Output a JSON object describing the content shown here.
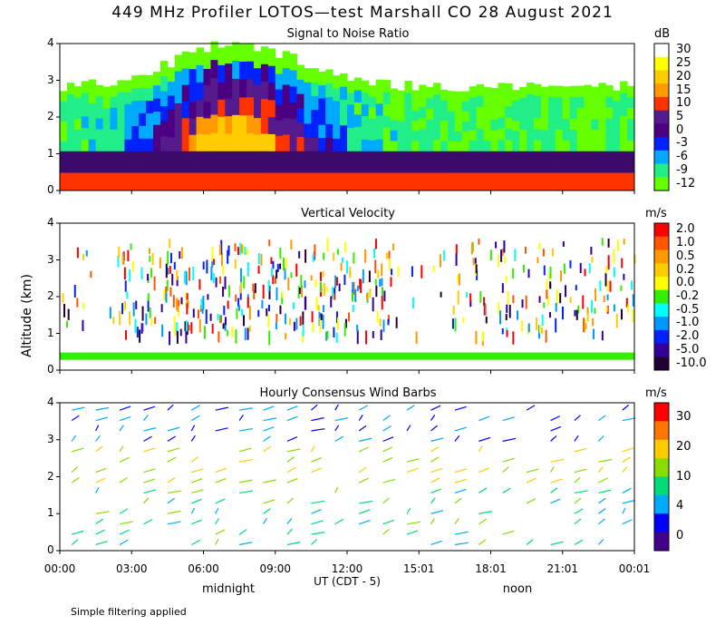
{
  "title": "449 MHz Profiler LOTOS—test Marshall CO 28 August 2021",
  "y_axis_label": "Altitude (km)",
  "x_axis_label": "UT  (CDT - 5)",
  "x_ticks": [
    "00:00",
    "03:00",
    "06:00",
    "09:00",
    "12:00",
    "15:01",
    "18:01",
    "21:01",
    "00:01"
  ],
  "midnight_label": "midnight",
  "noon_label": "noon",
  "footnote": "Simple filtering applied",
  "chart_data": [
    {
      "type": "heatmap",
      "title": "Signal to Noise Ratio",
      "unit": "dB",
      "yticks": [
        "0",
        "1",
        "2",
        "3",
        "4"
      ],
      "ylim": [
        0,
        4
      ],
      "colorbar": {
        "labels": [
          "30",
          "25",
          "20",
          "15",
          "10",
          "5",
          "0",
          "-3",
          "-6",
          "-9",
          "-12"
        ],
        "colors": [
          "#ffffff",
          "#ffff00",
          "#ffcc00",
          "#ff9900",
          "#ff3300",
          "#551a8b",
          "#4b0082",
          "#0022ff",
          "#00aaff",
          "#22ee88",
          "#66ff00"
        ]
      }
    },
    {
      "type": "heatmap",
      "title": "Vertical Velocity",
      "unit": "m/s",
      "yticks": [
        "0",
        "1",
        "2",
        "3",
        "4"
      ],
      "ylim": [
        0,
        4
      ],
      "colorbar": {
        "labels": [
          "2.0",
          "1.0",
          "0.5",
          "0.2",
          "0.0",
          "-0.2",
          "-0.5",
          "-1.0",
          "-2.0",
          "-5.0",
          "-10.0"
        ],
        "colors": [
          "#ff0000",
          "#ff5500",
          "#ff9900",
          "#ffcc00",
          "#ffff00",
          "#33ee00",
          "#00ffff",
          "#0099ff",
          "#0022ff",
          "#330099",
          "#220033"
        ]
      }
    },
    {
      "type": "scatter",
      "title": "Hourly Consensus Wind Barbs",
      "unit": "m/s",
      "yticks": [
        "0",
        "1",
        "2",
        "3",
        "4"
      ],
      "ylim": [
        0,
        4
      ],
      "colorbar": {
        "labels": [
          "30",
          "20",
          "10",
          "4",
          "0"
        ],
        "colors": [
          "#ff0000",
          "#ff7700",
          "#ffcc00",
          "#88dd00",
          "#00dd77",
          "#00aaff",
          "#0000ff",
          "#440088"
        ]
      }
    }
  ]
}
